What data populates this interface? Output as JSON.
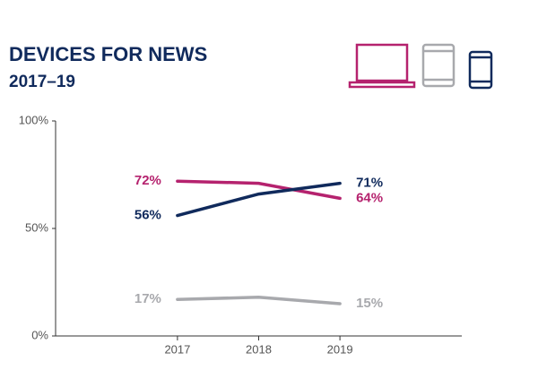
{
  "chart_data": {
    "type": "line",
    "title": "DEVICES FOR NEWS",
    "subtitle": "2017–19",
    "x": [
      2017,
      2018,
      2019
    ],
    "xlim": [
      2015.5,
      2020.5
    ],
    "xticks": [
      2017,
      2018,
      2019
    ],
    "ylim": [
      0,
      100
    ],
    "yticks": [
      {
        "value": 0,
        "label": "0%"
      },
      {
        "value": 50,
        "label": "50%"
      },
      {
        "value": 100,
        "label": "100%"
      }
    ],
    "series": [
      {
        "color": "#b5226e",
        "values": [
          72,
          71,
          64
        ],
        "value_labels": [
          "72%",
          null,
          "64%"
        ]
      },
      {
        "color": "#102a5c",
        "values": [
          56,
          66,
          71
        ],
        "value_labels": [
          "56%",
          null,
          "71%"
        ]
      },
      {
        "color": "#a8a9ad",
        "values": [
          17,
          18,
          15
        ],
        "value_labels": [
          "17%",
          null,
          "15%"
        ]
      }
    ]
  }
}
